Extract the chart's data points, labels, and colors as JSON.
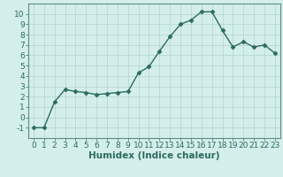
{
  "x": [
    0,
    1,
    2,
    3,
    4,
    5,
    6,
    7,
    8,
    9,
    10,
    11,
    12,
    13,
    14,
    15,
    16,
    17,
    18,
    19,
    20,
    21,
    22,
    23
  ],
  "y": [
    -1,
    -1,
    1.5,
    2.7,
    2.5,
    2.4,
    2.2,
    2.3,
    2.4,
    2.5,
    4.3,
    4.9,
    6.4,
    7.8,
    9.0,
    9.4,
    10.2,
    10.2,
    8.4,
    6.8,
    7.3,
    6.8,
    7.0,
    6.2
  ],
  "line_color": "#2a6b60",
  "marker": "D",
  "marker_size": 2.5,
  "linewidth": 1.0,
  "bg_color": "#d4eeeb",
  "grid_color": "#b8d8d4",
  "xlabel": "Humidex (Indice chaleur)",
  "xlim": [
    -0.5,
    23.5
  ],
  "ylim": [
    -2,
    11
  ],
  "yticks": [
    -1,
    0,
    1,
    2,
    3,
    4,
    5,
    6,
    7,
    8,
    9,
    10
  ],
  "xticks": [
    0,
    1,
    2,
    3,
    4,
    5,
    6,
    7,
    8,
    9,
    10,
    11,
    12,
    13,
    14,
    15,
    16,
    17,
    18,
    19,
    20,
    21,
    22,
    23
  ],
  "xlabel_fontsize": 7.5,
  "tick_fontsize": 6.5,
  "spine_color": "#5a9080"
}
